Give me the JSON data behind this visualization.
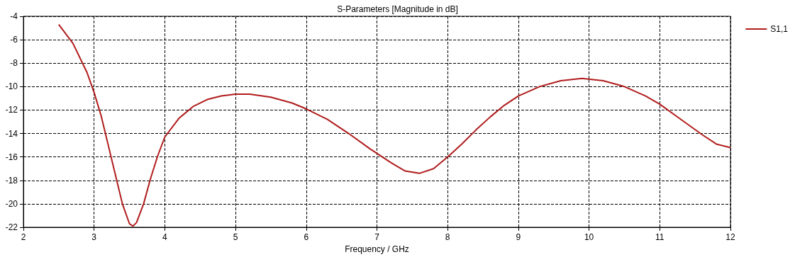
{
  "chart_data": {
    "type": "line",
    "title": "S-Parameters [Magnitude in dB]",
    "xlabel": "Frequency / GHz",
    "xlim": [
      2,
      12
    ],
    "xticks": [
      2,
      3,
      4,
      5,
      6,
      7,
      8,
      9,
      10,
      11,
      12
    ],
    "ylim": [
      -22,
      -4
    ],
    "yticks": [
      -22,
      -20,
      -18,
      -16,
      -14,
      -12,
      -10,
      -8,
      -6,
      -4
    ],
    "grid": true,
    "legend": "top right",
    "marker": "none",
    "line_style": "solid",
    "series": [
      {
        "name": "S1,1",
        "color": "#b01c1c",
        "x": [
          2.5,
          2.7,
          2.9,
          3.0,
          3.1,
          3.2,
          3.3,
          3.4,
          3.5,
          3.55,
          3.6,
          3.7,
          3.8,
          3.9,
          4.0,
          4.2,
          4.4,
          4.6,
          4.8,
          5.0,
          5.2,
          5.5,
          5.8,
          6.0,
          6.3,
          6.6,
          6.9,
          7.0,
          7.2,
          7.4,
          7.6,
          7.8,
          8.0,
          8.2,
          8.4,
          8.6,
          8.8,
          9.0,
          9.3,
          9.6,
          9.9,
          10.2,
          10.5,
          10.8,
          11.0,
          11.3,
          11.6,
          11.8,
          12.0
        ],
        "values": [
          -4.7,
          -6.3,
          -8.8,
          -10.5,
          -12.5,
          -15,
          -17.5,
          -20,
          -21.7,
          -21.9,
          -21.6,
          -20,
          -17.8,
          -15.9,
          -14.3,
          -12.7,
          -11.7,
          -11.1,
          -10.8,
          -10.65,
          -10.65,
          -10.9,
          -11.4,
          -11.9,
          -12.8,
          -14.0,
          -15.3,
          -15.7,
          -16.5,
          -17.2,
          -17.4,
          -17.0,
          -16.0,
          -14.9,
          -13.7,
          -12.6,
          -11.6,
          -10.8,
          -10.0,
          -9.5,
          -9.3,
          -9.5,
          -10.0,
          -10.8,
          -11.5,
          -12.8,
          -14.1,
          -14.9,
          -15.2
        ]
      }
    ]
  }
}
